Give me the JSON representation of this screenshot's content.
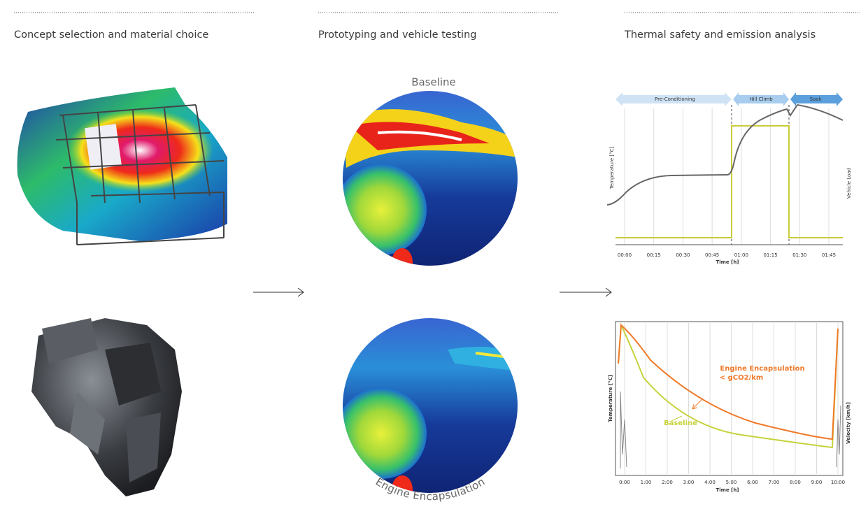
{
  "columns": [
    {
      "heading": "Concept selection and material choice"
    },
    {
      "heading": "Prototyping and vehicle testing",
      "images": [
        {
          "label": "Baseline"
        },
        {
          "label": "Engine Encapsulation"
        }
      ]
    },
    {
      "heading": "Thermal safety and emission analysis",
      "charts": [
        {
          "phases": [
            "Pre-Conditioning",
            "Hill Climb",
            "Soak"
          ],
          "y_label": "Temperature [°C]",
          "y2_label": "Vehicle Load",
          "x_ticks": [
            "00:00",
            "00:15",
            "00:30",
            "00:45",
            "01:00",
            "01:15",
            "01:30",
            "01:45"
          ],
          "x_label": "Time [h]"
        },
        {
          "annotations": [
            "Engine Encapsulation",
            "< gCO2/km",
            "Baseline"
          ],
          "y_label": "Temperature [°C]",
          "y2_label": "Velocity [km/h]",
          "x_ticks": [
            "0:00",
            "1:00",
            "2:00",
            "3:00",
            "4:00",
            "5:00",
            "6:00",
            "7:00",
            "8:00",
            "9:00",
            "10:00"
          ],
          "x_label": "Time [h]"
        }
      ]
    }
  ]
}
